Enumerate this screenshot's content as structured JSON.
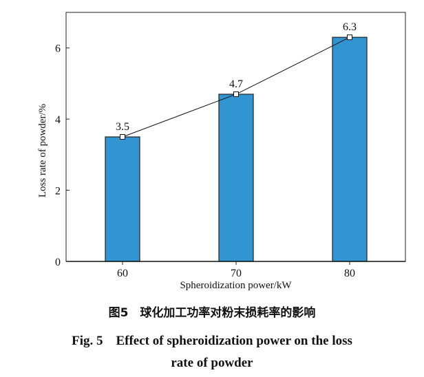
{
  "chart_data": {
    "type": "bar",
    "categories": [
      "60",
      "70",
      "80"
    ],
    "values": [
      3.5,
      4.7,
      6.3
    ],
    "data_labels": [
      "3.5",
      "4.7",
      "6.3"
    ],
    "overlay_line": {
      "type": "line",
      "marker": "open-square",
      "values": [
        3.5,
        4.7,
        6.3
      ]
    },
    "xlabel": "Spheroidization power/kW",
    "ylabel": "Loss rate of powder/%",
    "ylim": [
      0,
      7
    ],
    "yticks": [
      "0",
      "2",
      "4",
      "6"
    ],
    "grid": false,
    "bar_color": "#3394d2"
  },
  "caption": {
    "cn": "图5　球化加工功率对粉末损耗率的影响",
    "en_line1": "Fig. 5　Effect of spheroidization power on the loss",
    "en_line2": "rate of powder"
  }
}
